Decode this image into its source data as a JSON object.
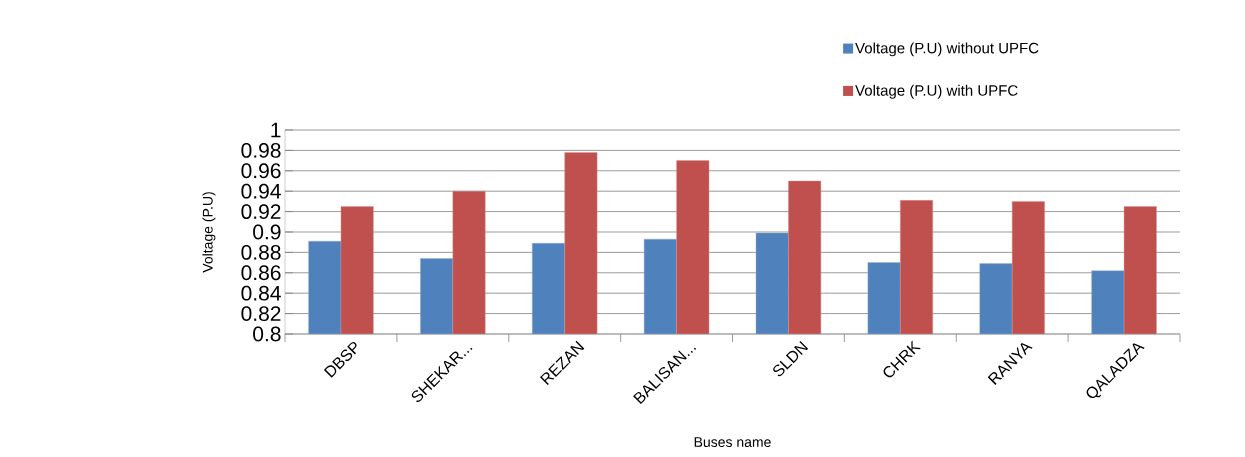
{
  "chart_data": {
    "type": "bar",
    "xlabel": "Buses name",
    "ylabel": "Voltage (P.U)",
    "categories": [
      "DBSP",
      "SHEKAR...",
      "REZAN",
      "BALISAN...",
      "SLDN",
      "CHRK",
      "RANYA",
      "QALADZA"
    ],
    "series": [
      {
        "name": "Voltage (P.U) without UPFC",
        "color": "#4f81bd",
        "values": [
          0.891,
          0.874,
          0.889,
          0.893,
          0.899,
          0.87,
          0.869,
          0.862
        ]
      },
      {
        "name": "Voltage (P.U) with UPFC",
        "color": "#c0504d",
        "values": [
          0.925,
          0.94,
          0.978,
          0.97,
          0.95,
          0.931,
          0.93,
          0.925
        ]
      }
    ],
    "ylim": [
      0.8,
      1
    ],
    "yticks": [
      0.8,
      0.82,
      0.84,
      0.86,
      0.88,
      0.9,
      0.92,
      0.94,
      0.96,
      0.98,
      1
    ],
    "grid": "y",
    "legend": "top right"
  }
}
